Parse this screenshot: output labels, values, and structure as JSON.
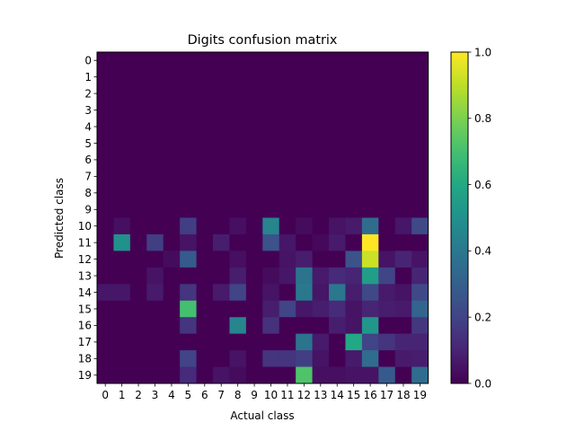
{
  "chart_data": {
    "type": "heatmap",
    "title": "Digits confusion matrix",
    "xlabel": "Actual class",
    "ylabel": "Predicted class",
    "x_labels": [
      "0",
      "1",
      "2",
      "3",
      "4",
      "5",
      "6",
      "7",
      "8",
      "9",
      "10",
      "11",
      "12",
      "13",
      "14",
      "15",
      "16",
      "17",
      "18",
      "19"
    ],
    "y_labels": [
      "0",
      "1",
      "2",
      "3",
      "4",
      "5",
      "6",
      "7",
      "8",
      "9",
      "10",
      "11",
      "12",
      "13",
      "14",
      "15",
      "16",
      "17",
      "18",
      "19"
    ],
    "colorbar": {
      "min": 0.0,
      "max": 1.0,
      "tick_values": [
        0.0,
        0.2,
        0.4,
        0.6,
        0.8,
        1.0
      ],
      "tick_labels": [
        "0.0",
        "0.2",
        "0.4",
        "0.6",
        "0.8",
        "1.0"
      ]
    },
    "colormap": "viridis",
    "matrix": [
      [
        0,
        0,
        0,
        0,
        0,
        0,
        0,
        0,
        0,
        0,
        0,
        0,
        0,
        0,
        0,
        0,
        0,
        0,
        0,
        0
      ],
      [
        0,
        0,
        0,
        0,
        0,
        0,
        0,
        0,
        0,
        0,
        0,
        0,
        0,
        0,
        0,
        0,
        0,
        0,
        0,
        0
      ],
      [
        0,
        0,
        0,
        0,
        0,
        0,
        0,
        0,
        0,
        0,
        0,
        0,
        0,
        0,
        0,
        0,
        0,
        0,
        0,
        0
      ],
      [
        0,
        0,
        0,
        0,
        0,
        0,
        0,
        0,
        0,
        0,
        0,
        0,
        0,
        0,
        0,
        0,
        0,
        0,
        0,
        0
      ],
      [
        0,
        0,
        0,
        0,
        0,
        0,
        0,
        0,
        0,
        0,
        0,
        0,
        0,
        0,
        0,
        0,
        0,
        0,
        0,
        0
      ],
      [
        0,
        0,
        0,
        0,
        0,
        0,
        0,
        0,
        0,
        0,
        0,
        0,
        0,
        0,
        0,
        0,
        0,
        0,
        0,
        0
      ],
      [
        0,
        0,
        0,
        0,
        0,
        0,
        0,
        0,
        0,
        0,
        0,
        0,
        0,
        0,
        0,
        0,
        0,
        0,
        0,
        0
      ],
      [
        0,
        0,
        0,
        0,
        0,
        0,
        0,
        0,
        0,
        0,
        0,
        0,
        0,
        0,
        0,
        0,
        0,
        0,
        0,
        0
      ],
      [
        0,
        0,
        0,
        0,
        0,
        0,
        0,
        0,
        0,
        0,
        0,
        0,
        0,
        0,
        0,
        0,
        0,
        0,
        0,
        0
      ],
      [
        0,
        0,
        0,
        0,
        0,
        0,
        0,
        0,
        0,
        0,
        0,
        0,
        0,
        0,
        0,
        0,
        0,
        0,
        0,
        0
      ],
      [
        0,
        0.04,
        0,
        0,
        0,
        0.18,
        0,
        0,
        0.04,
        0,
        0.45,
        0,
        0.03,
        0,
        0.05,
        0.07,
        0.35,
        0,
        0.06,
        0.22
      ],
      [
        0,
        0.5,
        0,
        0.18,
        0,
        0.05,
        0,
        0.08,
        0,
        0,
        0.25,
        0.06,
        0,
        0.02,
        0.07,
        0,
        1.0,
        0,
        0,
        0
      ],
      [
        0,
        0,
        0,
        0,
        0.03,
        0.28,
        0,
        0,
        0.04,
        0,
        0,
        0.05,
        0.08,
        0,
        0,
        0.25,
        0.92,
        0.05,
        0.1,
        0.05
      ],
      [
        0,
        0,
        0,
        0.05,
        0,
        0,
        0,
        0,
        0.08,
        0,
        0.03,
        0.06,
        0.38,
        0.07,
        0.12,
        0.1,
        0.55,
        0.2,
        0,
        0.1
      ],
      [
        0.06,
        0.06,
        0,
        0.07,
        0,
        0.15,
        0,
        0.07,
        0.2,
        0,
        0.05,
        0,
        0.4,
        0.06,
        0.4,
        0.08,
        0.22,
        0.07,
        0.05,
        0.22
      ],
      [
        0,
        0,
        0,
        0,
        0,
        0.7,
        0,
        0,
        0,
        0,
        0.08,
        0.2,
        0.06,
        0.08,
        0.12,
        0.05,
        0.1,
        0.08,
        0.07,
        0.32
      ],
      [
        0,
        0,
        0,
        0,
        0,
        0.15,
        0,
        0,
        0.45,
        0,
        0.14,
        0,
        0,
        0,
        0.08,
        0.05,
        0.52,
        0,
        0,
        0.16
      ],
      [
        0,
        0,
        0,
        0,
        0,
        0,
        0,
        0,
        0,
        0,
        0,
        0,
        0.38,
        0.07,
        0,
        0.6,
        0.2,
        0.15,
        0.1,
        0.1
      ],
      [
        0,
        0,
        0,
        0,
        0,
        0.2,
        0,
        0,
        0.05,
        0,
        0.15,
        0.15,
        0.18,
        0.05,
        0,
        0.07,
        0.35,
        0,
        0.07,
        0.08
      ],
      [
        0,
        0,
        0,
        0,
        0,
        0.12,
        0,
        0.05,
        0.03,
        0,
        0,
        0,
        0.72,
        0.04,
        0.04,
        0.05,
        0.05,
        0.28,
        0,
        0.35
      ]
    ]
  }
}
